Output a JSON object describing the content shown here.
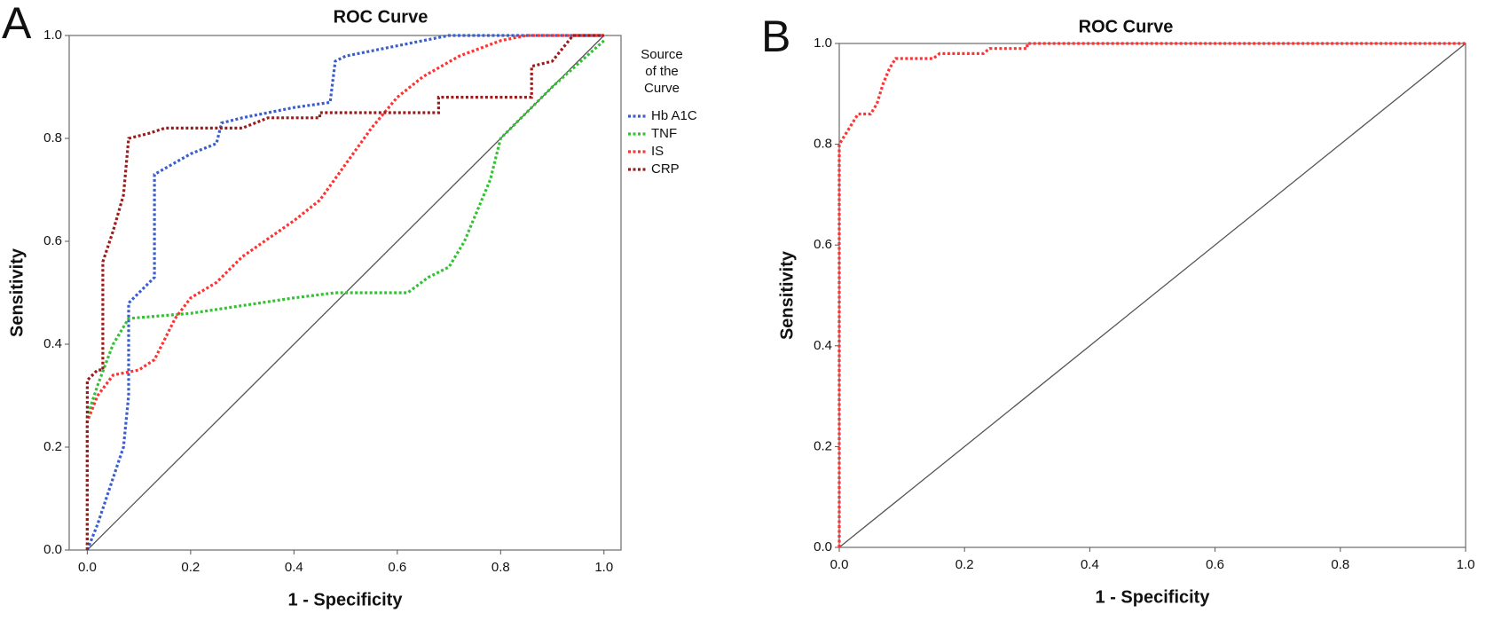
{
  "chart_data": [
    {
      "type": "line",
      "panel": "A",
      "title": "ROC Curve",
      "xlabel": "1 - Specificity",
      "ylabel": "Sensitivity",
      "legend_title": [
        "Source",
        "of the",
        "Curve"
      ],
      "legend": "right",
      "xlim": [
        -0.035,
        1.033
      ],
      "ylim": [
        0,
        1
      ],
      "xticks": [
        {
          "value": 0,
          "label": "0.0"
        },
        {
          "value": 0.2,
          "label": "0.2"
        },
        {
          "value": 0.4,
          "label": "0.4"
        },
        {
          "value": 0.6,
          "label": "0.6"
        },
        {
          "value": 0.8,
          "label": "0.8"
        },
        {
          "value": 1,
          "label": "1.0"
        }
      ],
      "yticks": [
        {
          "value": 0,
          "label": "0.0"
        },
        {
          "value": 0.2,
          "label": "0.2"
        },
        {
          "value": 0.4,
          "label": "0.4"
        },
        {
          "value": 0.6,
          "label": "0.6"
        },
        {
          "value": 0.8,
          "label": "0.8"
        },
        {
          "value": 1,
          "label": "1.0"
        }
      ],
      "series": [
        {
          "name": "Hb A1C",
          "color": "#3a5fcd",
          "x": [
            0,
            0.02,
            0.06,
            0.07,
            0.08,
            0.08,
            0.1,
            0.12,
            0.13,
            0.13,
            0.2,
            0.25,
            0.26,
            0.3,
            0.4,
            0.47,
            0.48,
            0.5,
            0.55,
            0.7,
            1
          ],
          "values": [
            0,
            0.05,
            0.17,
            0.2,
            0.3,
            0.48,
            0.5,
            0.52,
            0.53,
            0.73,
            0.77,
            0.79,
            0.83,
            0.84,
            0.86,
            0.87,
            0.95,
            0.96,
            0.97,
            1,
            1
          ]
        },
        {
          "name": "TNF",
          "color": "#33c233",
          "x": [
            0,
            0,
            0.02,
            0.05,
            0.08,
            0.2,
            0.4,
            0.48,
            0.62,
            0.66,
            0.7,
            0.73,
            0.78,
            0.8,
            0.85,
            0.9,
            1
          ],
          "values": [
            0,
            0.26,
            0.32,
            0.4,
            0.45,
            0.46,
            0.49,
            0.5,
            0.5,
            0.53,
            0.55,
            0.6,
            0.72,
            0.8,
            0.85,
            0.9,
            0.99
          ]
        },
        {
          "name": "IS",
          "color": "#ff3333",
          "x": [
            0,
            0,
            0.02,
            0.05,
            0.1,
            0.13,
            0.17,
            0.2,
            0.25,
            0.3,
            0.4,
            0.45,
            0.5,
            0.55,
            0.6,
            0.65,
            0.72,
            0.8,
            0.85,
            1
          ],
          "values": [
            0,
            0.25,
            0.3,
            0.34,
            0.35,
            0.37,
            0.45,
            0.49,
            0.52,
            0.57,
            0.64,
            0.68,
            0.75,
            0.82,
            0.88,
            0.92,
            0.96,
            0.99,
            1,
            1
          ]
        },
        {
          "name": "CRP",
          "color": "#9b1c1c",
          "x": [
            0,
            0,
            0.02,
            0.03,
            0.03,
            0.05,
            0.07,
            0.08,
            0.12,
            0.15,
            0.3,
            0.35,
            0.45,
            0.45,
            0.68,
            0.68,
            0.86,
            0.86,
            0.9,
            0.94,
            1
          ],
          "values": [
            0,
            0.33,
            0.35,
            0.35,
            0.56,
            0.62,
            0.69,
            0.8,
            0.81,
            0.82,
            0.82,
            0.84,
            0.84,
            0.85,
            0.85,
            0.88,
            0.88,
            0.94,
            0.95,
            1,
            1
          ]
        }
      ]
    },
    {
      "type": "line",
      "panel": "B",
      "title": "ROC Curve",
      "xlabel": "1 - Specificity",
      "ylabel": "Sensitivity",
      "xlim": [
        0,
        1
      ],
      "ylim": [
        0,
        1
      ],
      "xticks": [
        {
          "value": 0,
          "label": "0.0"
        },
        {
          "value": 0.2,
          "label": "0.2"
        },
        {
          "value": 0.4,
          "label": "0.4"
        },
        {
          "value": 0.6,
          "label": "0.6"
        },
        {
          "value": 0.8,
          "label": "0.8"
        },
        {
          "value": 1,
          "label": "1.0"
        }
      ],
      "yticks": [
        {
          "value": 0,
          "label": "0.0"
        },
        {
          "value": 0.2,
          "label": "0.2"
        },
        {
          "value": 0.4,
          "label": "0.4"
        },
        {
          "value": 0.6,
          "label": "0.6"
        },
        {
          "value": 0.8,
          "label": "0.8"
        },
        {
          "value": 1,
          "label": "1.0"
        }
      ],
      "series": [
        {
          "color": "#ff3333",
          "x": [
            0,
            0,
            0.01,
            0.02,
            0.03,
            0.05,
            0.06,
            0.07,
            0.08,
            0.09,
            0.15,
            0.16,
            0.23,
            0.24,
            0.3,
            0.3,
            1
          ],
          "values": [
            0,
            0.8,
            0.82,
            0.84,
            0.86,
            0.86,
            0.88,
            0.92,
            0.95,
            0.97,
            0.97,
            0.98,
            0.98,
            0.99,
            0.99,
            1,
            1
          ]
        }
      ]
    }
  ]
}
